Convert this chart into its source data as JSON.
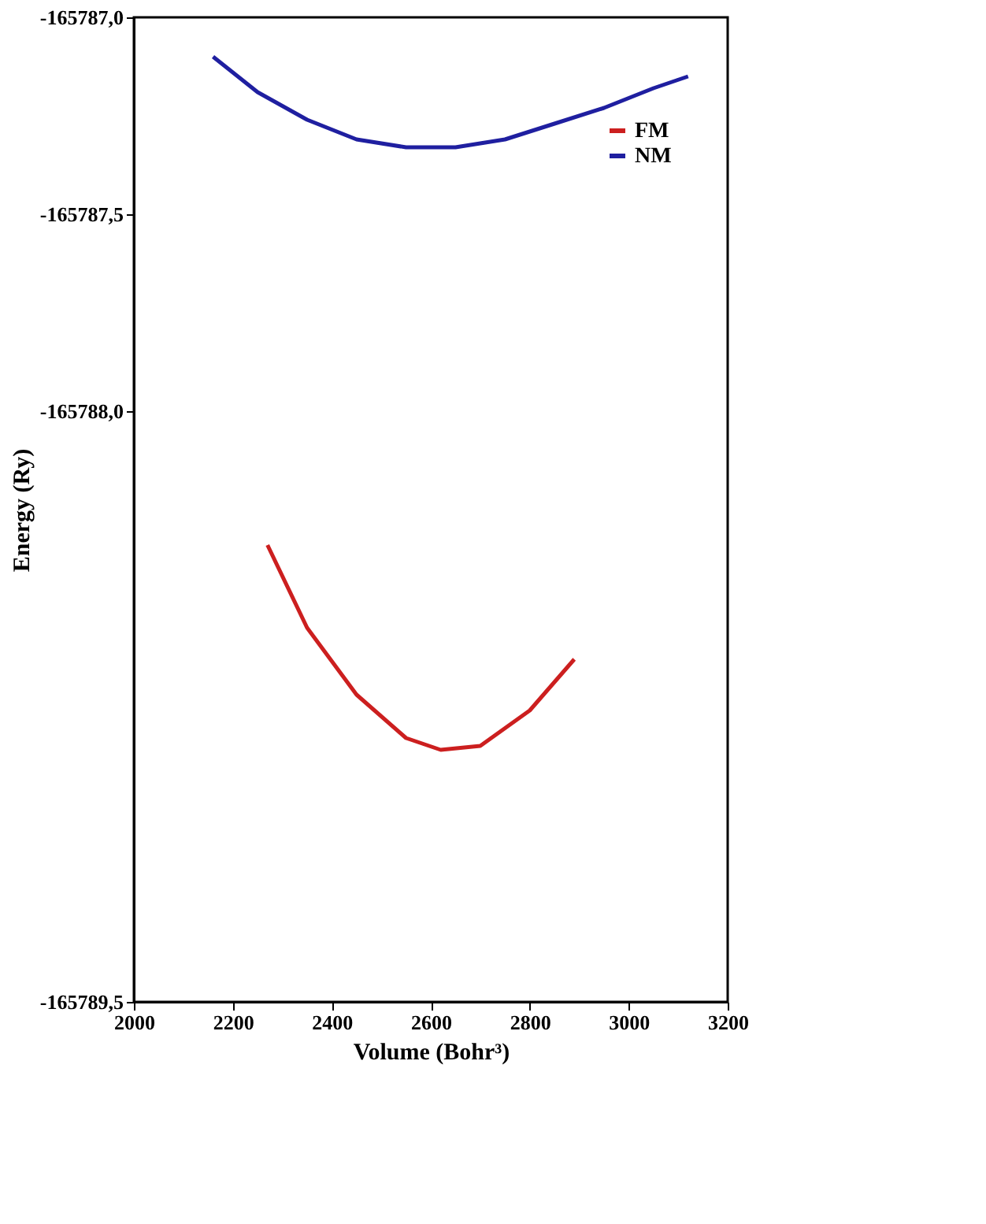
{
  "chart_data": {
    "type": "line",
    "xlabel": "Volume (Bohr³)",
    "ylabel": "Energy (Ry)",
    "xlim": [
      2000,
      3200
    ],
    "xticks": [
      2000,
      2200,
      2400,
      2600,
      2800,
      3000,
      3200
    ],
    "ylim": [
      -165789.5,
      -165787.0
    ],
    "yticks": [
      {
        "value": -165787.0,
        "label": "-165787,0"
      },
      {
        "value": -165787.5,
        "label": "-165787,5"
      },
      {
        "value": -165788.0,
        "label": "-165788,0"
      },
      {
        "value": -165789.5,
        "label": "-165789,5"
      }
    ],
    "grid": false,
    "legend": "top right",
    "marker": "none",
    "line_style": "solid",
    "series": [
      {
        "name": "FM",
        "color": "#cc1f1f",
        "x": [
          2270,
          2350,
          2450,
          2550,
          2620,
          2700,
          2800,
          2890
        ],
        "values": [
          -165788.34,
          -165788.55,
          -165788.72,
          -165788.83,
          -165788.86,
          -165788.85,
          -165788.76,
          -165788.63
        ]
      },
      {
        "name": "NM",
        "color": "#1f1fa0",
        "x": [
          2160,
          2250,
          2350,
          2450,
          2550,
          2650,
          2750,
          2850,
          2950,
          3050,
          3120
        ],
        "values": [
          -165787.1,
          -165787.19,
          -165787.26,
          -165787.31,
          -165787.33,
          -165787.33,
          -165787.31,
          -165787.27,
          -165787.23,
          -165787.18,
          -165787.15
        ]
      }
    ]
  }
}
